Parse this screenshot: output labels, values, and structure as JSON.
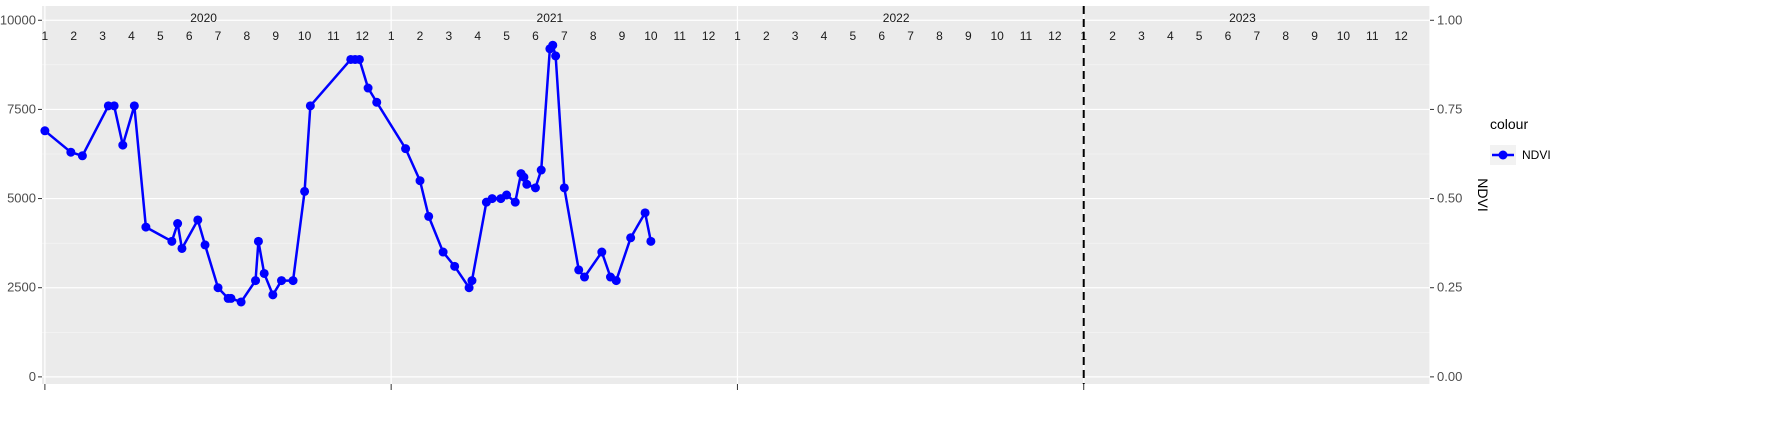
{
  "chart_data": {
    "type": "line",
    "ylabel_right": "NDVI",
    "ylim_left": [
      0,
      10000
    ],
    "ylim_right": [
      0,
      1
    ],
    "yticks_left": [
      "0",
      "2500",
      "5000",
      "7500",
      "10000"
    ],
    "yticks_right": [
      "0.00",
      "0.25",
      "0.50",
      "0.75",
      "1.00"
    ],
    "grid": true,
    "legend": {
      "title": "colour",
      "placement": "right"
    },
    "years": [
      "2020",
      "2021",
      "2022",
      "2023"
    ],
    "months": [
      "1",
      "2",
      "3",
      "4",
      "5",
      "6",
      "7",
      "8",
      "9",
      "10",
      "11",
      "12"
    ],
    "dashed_line_x": 36,
    "series": [
      {
        "name": "NDVI",
        "color": "#0000ff",
        "axis": "right",
        "x": [
          0,
          0.9,
          1.3,
          2.2,
          2.4,
          2.7,
          3.1,
          3.5,
          4.4,
          4.6,
          4.75,
          5.3,
          5.55,
          6.0,
          6.35,
          6.45,
          6.8,
          7.3,
          7.4,
          7.6,
          7.9,
          8.2,
          8.6,
          9.0,
          9.2,
          10.6,
          10.75,
          10.9,
          11.2,
          11.5,
          12.5,
          13.0,
          13.3,
          13.8,
          14.2,
          14.7,
          14.8,
          15.3,
          15.5,
          15.8,
          16.0,
          16.3,
          16.5,
          16.6,
          16.7,
          17.0,
          17.2,
          17.5,
          17.6,
          17.7,
          18.0,
          18.5,
          18.7,
          19.3,
          19.6,
          19.8,
          20.3,
          20.8,
          21.0
        ],
        "y": [
          0.69,
          0.63,
          0.62,
          0.76,
          0.76,
          0.65,
          0.76,
          0.42,
          0.38,
          0.43,
          0.36,
          0.44,
          0.37,
          0.25,
          0.22,
          0.22,
          0.21,
          0.27,
          0.38,
          0.29,
          0.23,
          0.27,
          0.27,
          0.52,
          0.76,
          0.89,
          0.89,
          0.89,
          0.81,
          0.77,
          0.64,
          0.55,
          0.45,
          0.35,
          0.31,
          0.25,
          0.27,
          0.49,
          0.5,
          0.5,
          0.51,
          0.49,
          0.57,
          0.56,
          0.54,
          0.53,
          0.58,
          0.92,
          0.93,
          0.9,
          0.53,
          0.3,
          0.28,
          0.35,
          0.28,
          0.27,
          0.39,
          0.46,
          0.38
        ]
      }
    ]
  }
}
